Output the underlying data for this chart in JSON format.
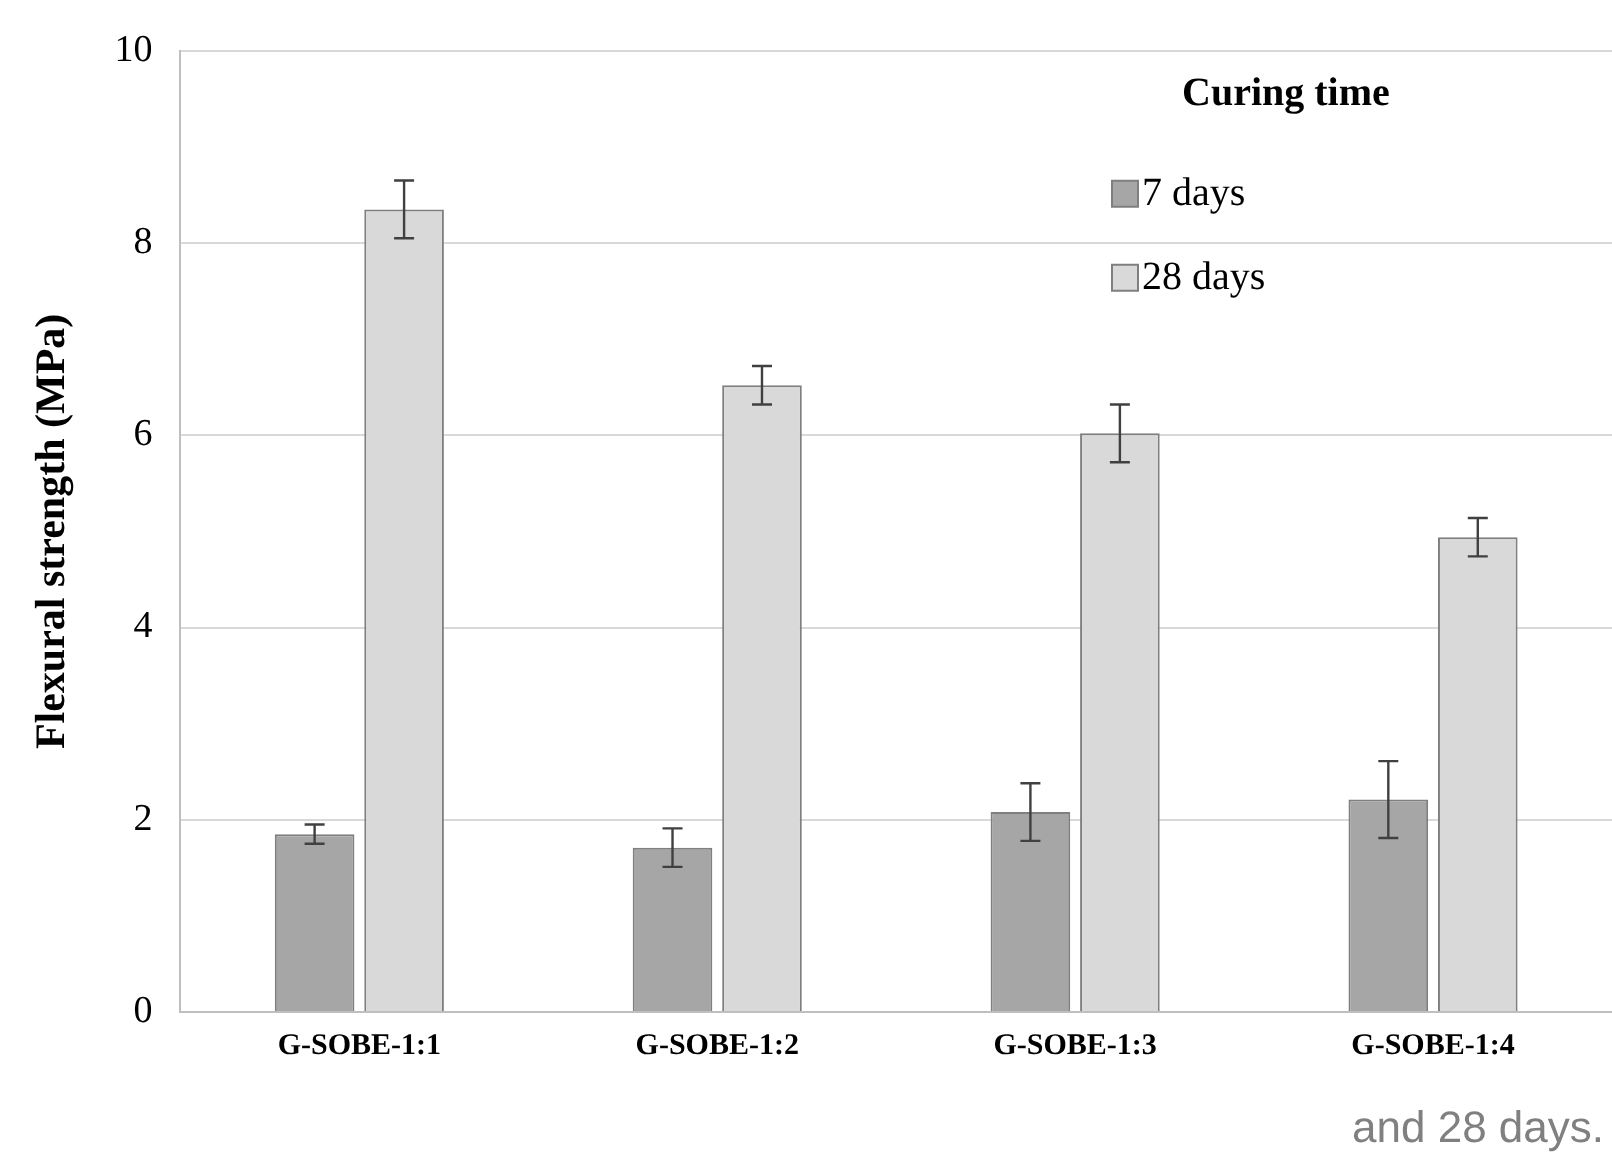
{
  "chart_data": {
    "type": "bar",
    "ylabel": "Flexural strength (MPa)",
    "legend_title": "Curing time",
    "categories": [
      "G-SOBE-1:1",
      "G-SOBE-1:2",
      "G-SOBE-1:3",
      "G-SOBE-1:4"
    ],
    "series": [
      {
        "name": "7 days",
        "color": "#a6a6a6",
        "values": [
          1.85,
          1.71,
          2.08,
          2.21
        ],
        "errors": [
          0.1,
          0.2,
          0.3,
          0.4
        ]
      },
      {
        "name": "28 days",
        "color": "#d9d9d9",
        "values": [
          8.35,
          6.52,
          6.02,
          4.94
        ],
        "errors": [
          0.3,
          0.2,
          0.3,
          0.2
        ]
      }
    ],
    "ylim": [
      0,
      10
    ],
    "yticks": [
      0,
      2,
      4,
      6,
      8,
      10
    ],
    "grid": "y",
    "legend": "top right",
    "annotations": [
      "and 28 days."
    ]
  }
}
